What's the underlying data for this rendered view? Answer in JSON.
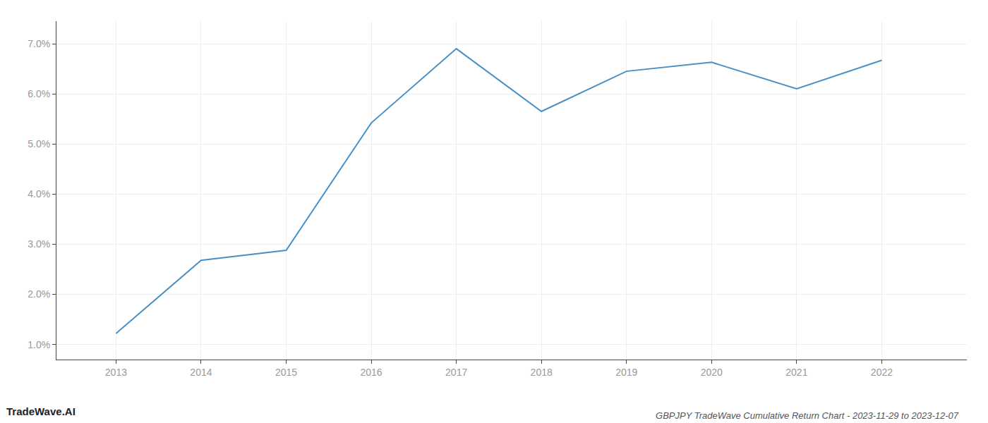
{
  "chart_data": {
    "type": "line",
    "title": "GBPJPY TradeWave Cumulative Return Chart - 2023-11-29 to 2023-12-07",
    "annotations": [
      "TradeWave.AI"
    ],
    "x": [
      2013,
      2014,
      2015,
      2016,
      2017,
      2018,
      2019,
      2020,
      2021,
      2022
    ],
    "values": [
      1.22,
      2.68,
      2.88,
      5.42,
      6.9,
      5.65,
      6.45,
      6.63,
      6.1,
      6.67
    ],
    "color": "#4a90c4",
    "xlim": [
      2012.3,
      2023.0
    ],
    "xticks": [
      2013,
      2014,
      2015,
      2016,
      2017,
      2018,
      2019,
      2020,
      2021,
      2022
    ],
    "ylim": [
      0.7,
      7.45
    ],
    "yticks": [
      {
        "value": 1.0,
        "label": "1.0%"
      },
      {
        "value": 2.0,
        "label": "2.0%"
      },
      {
        "value": 3.0,
        "label": "3.0%"
      },
      {
        "value": 4.0,
        "label": "4.0%"
      },
      {
        "value": 5.0,
        "label": "5.0%"
      },
      {
        "value": 6.0,
        "label": "6.0%"
      },
      {
        "value": 7.0,
        "label": "7.0%"
      }
    ],
    "grid": true
  }
}
